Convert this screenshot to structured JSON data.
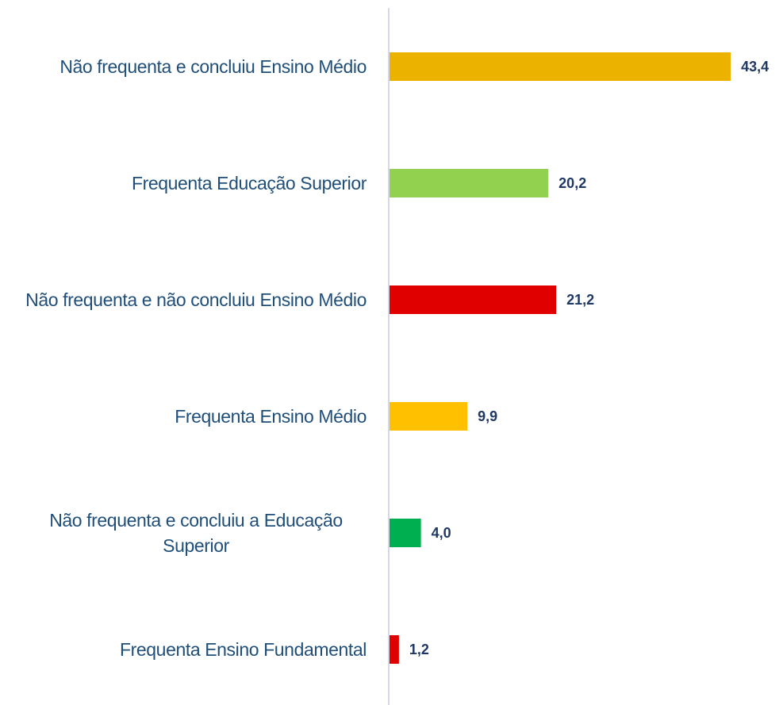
{
  "chart_data": {
    "type": "bar",
    "orientation": "horizontal",
    "categories": [
      "Não frequenta e concluiu Ensino Médio",
      "Frequenta Educação Superior",
      "Não frequenta e não concluiu Ensino Médio",
      "Frequenta Ensino Médio",
      "Não frequenta e concluiu a Educação Superior",
      "Frequenta Ensino Fundamental"
    ],
    "values": [
      43.4,
      20.2,
      21.2,
      9.9,
      4.0,
      1.2
    ],
    "value_labels": [
      "43,4",
      "20,2",
      "21,2",
      "9,9",
      "4,0",
      "1,2"
    ],
    "colors": [
      "#ebb300",
      "#92d050",
      "#e00000",
      "#ffc000",
      "#00b050",
      "#e00000"
    ]
  }
}
